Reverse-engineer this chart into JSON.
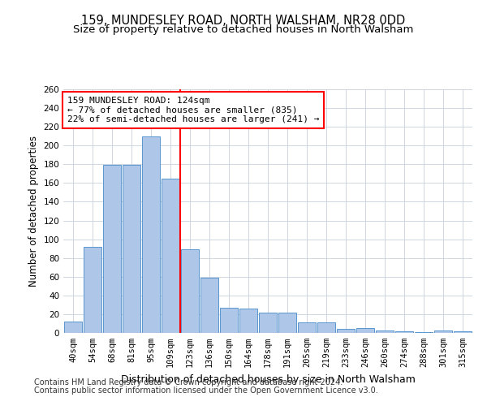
{
  "title1": "159, MUNDESLEY ROAD, NORTH WALSHAM, NR28 0DD",
  "title2": "Size of property relative to detached houses in North Walsham",
  "xlabel": "Distribution of detached houses by size in North Walsham",
  "ylabel": "Number of detached properties",
  "categories": [
    "40sqm",
    "54sqm",
    "68sqm",
    "81sqm",
    "95sqm",
    "109sqm",
    "123sqm",
    "136sqm",
    "150sqm",
    "164sqm",
    "178sqm",
    "191sqm",
    "205sqm",
    "219sqm",
    "233sqm",
    "246sqm",
    "260sqm",
    "274sqm",
    "288sqm",
    "301sqm",
    "315sqm"
  ],
  "values": [
    12,
    92,
    179,
    179,
    210,
    165,
    89,
    59,
    27,
    26,
    22,
    22,
    11,
    11,
    4,
    5,
    3,
    2,
    1,
    3,
    2
  ],
  "bar_color": "#aec6e8",
  "bar_edge_color": "#5a96d0",
  "vline_index": 6,
  "annotation_text": "159 MUNDESLEY ROAD: 124sqm\n← 77% of detached houses are smaller (835)\n22% of semi-detached houses are larger (241) →",
  "annotation_box_color": "white",
  "annotation_box_edge": "red",
  "vline_color": "red",
  "grid_color": "#c8d0dc",
  "background_color": "white",
  "footer1": "Contains HM Land Registry data © Crown copyright and database right 2024.",
  "footer2": "Contains public sector information licensed under the Open Government Licence v3.0.",
  "ylim": [
    0,
    260
  ],
  "yticks": [
    0,
    20,
    40,
    60,
    80,
    100,
    120,
    140,
    160,
    180,
    200,
    220,
    240,
    260
  ],
  "title1_fontsize": 10.5,
  "title2_fontsize": 9.5,
  "xlabel_fontsize": 9,
  "ylabel_fontsize": 8.5,
  "tick_fontsize": 7.5,
  "annotation_fontsize": 8,
  "footer_fontsize": 7
}
